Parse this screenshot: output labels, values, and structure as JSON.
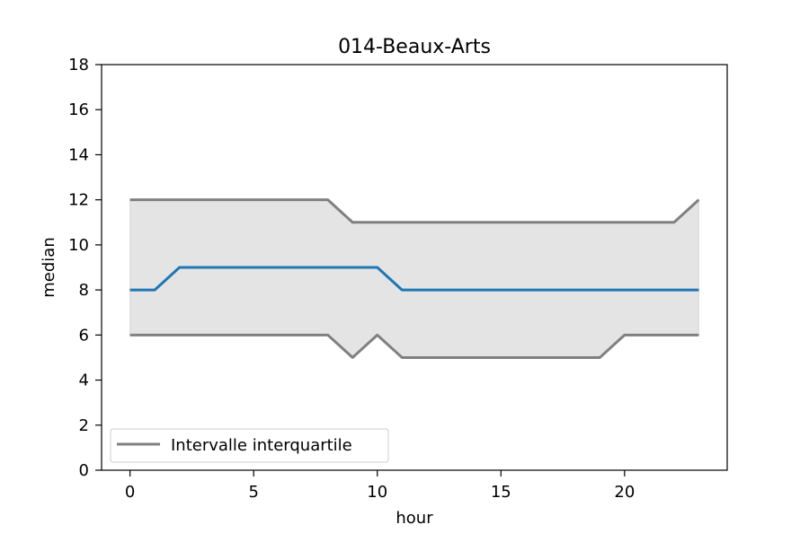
{
  "chart_data": {
    "type": "line",
    "title": "014-Beaux-Arts",
    "xlabel": "hour",
    "ylabel": "median",
    "xlim": [
      -1.15,
      24.15
    ],
    "ylim": [
      0,
      18
    ],
    "xticks": [
      0,
      5,
      10,
      15,
      20
    ],
    "yticks": [
      0,
      2,
      4,
      6,
      8,
      10,
      12,
      14,
      16,
      18
    ],
    "x": [
      0,
      1,
      2,
      3,
      4,
      5,
      6,
      7,
      8,
      9,
      10,
      11,
      12,
      13,
      14,
      15,
      16,
      17,
      18,
      19,
      20,
      21,
      22,
      23
    ],
    "series": [
      {
        "role": "median",
        "color": "#1f77b4",
        "values": [
          8,
          8,
          9,
          9,
          9,
          9,
          9,
          9,
          9,
          9,
          9,
          8,
          8,
          8,
          8,
          8,
          8,
          8,
          8,
          8,
          8,
          8,
          8,
          8
        ]
      },
      {
        "role": "q1",
        "color": "#808080",
        "values": [
          6,
          6,
          6,
          6,
          6,
          6,
          6,
          6,
          6,
          5,
          6,
          5,
          5,
          5,
          5,
          5,
          5,
          5,
          5,
          5,
          6,
          6,
          6,
          6
        ]
      },
      {
        "role": "q3",
        "color": "#808080",
        "values": [
          12,
          12,
          12,
          12,
          12,
          12,
          12,
          12,
          12,
          11,
          11,
          11,
          11,
          11,
          11,
          11,
          11,
          11,
          11,
          11,
          11,
          11,
          11,
          12
        ]
      }
    ],
    "band_fill": "#e4e4e4",
    "grid": false,
    "legend": {
      "placement": "lower-left",
      "entries": [
        {
          "label": "Intervalle interquartile",
          "color": "#808080"
        }
      ]
    }
  }
}
